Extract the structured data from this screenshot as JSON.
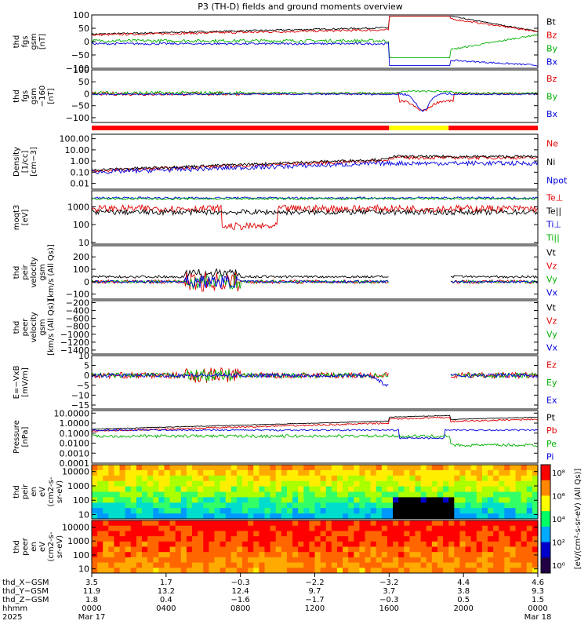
{
  "chart_data": {
    "type": "line",
    "title": "P3 (TH-D) fields and ground moments overview",
    "x_range_hours": [
      0,
      24
    ],
    "panels": [
      {
        "ylabel": [
          "thd",
          "fgs",
          "gsm",
          "[nT]"
        ],
        "yticks": [
          "100",
          "50",
          "0",
          "−50",
          "−100"
        ],
        "ylim": [
          -100,
          100
        ],
        "scale": "linear",
        "legend": [
          {
            "name": "Bt",
            "color": "#000000"
          },
          {
            "name": "Bz",
            "color": "#e00000"
          },
          {
            "name": "By",
            "color": "#00b000"
          },
          {
            "name": "Bx",
            "color": "#0000dd"
          }
        ]
      },
      {
        "ylabel": [
          "thd",
          "fgs",
          "gsm",
          "−160",
          "[nT]"
        ],
        "yticks": [
          "100",
          "50",
          "0",
          "−50",
          "−100"
        ],
        "ylim": [
          -120,
          100
        ],
        "scale": "linear",
        "legend": [
          {
            "name": "Bz",
            "color": "#e00000"
          },
          {
            "name": "By",
            "color": "#00b000"
          },
          {
            "name": "Bx",
            "color": "#0000dd"
          }
        ]
      },
      {
        "ylabel": [
          "Density",
          "[1/cc]",
          "[cm−3]"
        ],
        "yticks": [
          "100.00",
          "10.00",
          "1.00",
          "0.10",
          "0.01"
        ],
        "ylim": [
          0.003,
          250
        ],
        "scale": "log",
        "legend": [
          {
            "name": "Ne",
            "color": "#e00000"
          },
          {
            "name": "Ni",
            "color": "#000000"
          },
          {
            "name": "Npot",
            "color": "#0000dd"
          }
        ]
      },
      {
        "ylabel": [
          "moqt3",
          "[eV]"
        ],
        "yticks": [
          "1000",
          "100",
          "10"
        ],
        "ylim": [
          8,
          8000
        ],
        "scale": "log",
        "legend": [
          {
            "name": "Te⊥",
            "color": "#e00000"
          },
          {
            "name": "Te||",
            "color": "#000000"
          },
          {
            "name": "Ti⊥",
            "color": "#0000dd"
          },
          {
            "name": "Ti||",
            "color": "#00b000"
          }
        ]
      },
      {
        "ylabel": [
          "thd",
          "peir",
          "velocity",
          "gsm",
          "[km/s (All Qs)]"
        ],
        "yticks": [
          "200",
          "100",
          "0",
          "−100"
        ],
        "ylim": [
          -140,
          290
        ],
        "scale": "linear",
        "legend": [
          {
            "name": "Vt",
            "color": "#000000"
          },
          {
            "name": "Vz",
            "color": "#e00000"
          },
          {
            "name": "Vy",
            "color": "#00b000"
          },
          {
            "name": "Vx",
            "color": "#0000dd"
          }
        ]
      },
      {
        "ylabel": [
          "thd",
          "peer",
          "velocity",
          "gsm",
          "[km/s (All Qs)]"
        ],
        "yticks": [
          "−200",
          "−400",
          "−600",
          "−800",
          "−1000",
          "−1200",
          "−1400"
        ],
        "ylim": [
          -1500,
          -150
        ],
        "scale": "linear",
        "legend": [
          {
            "name": "Vt",
            "color": "#000000"
          },
          {
            "name": "Vz",
            "color": "#e00000"
          },
          {
            "name": "Vy",
            "color": "#00b000"
          },
          {
            "name": "Vx",
            "color": "#0000dd"
          }
        ]
      },
      {
        "ylabel": [
          "E=−VxB",
          "[mV/m]"
        ],
        "yticks": [
          "10",
          "5",
          "0",
          "−5",
          "−10",
          "−15"
        ],
        "ylim": [
          -17,
          10
        ],
        "scale": "linear",
        "legend": [
          {
            "name": "Ez",
            "color": "#e00000"
          },
          {
            "name": "Ey",
            "color": "#00b000"
          },
          {
            "name": "Ex",
            "color": "#0000dd"
          }
        ]
      },
      {
        "ylabel": [
          "Pressure",
          "[nPa]"
        ],
        "yticks": [
          "10.0000",
          "1.0000",
          "0.1000",
          "0.0100",
          "0.0010",
          "0.0001"
        ],
        "ylim": [
          0.0001,
          18
        ],
        "scale": "log",
        "legend": [
          {
            "name": "Pt",
            "color": "#000000"
          },
          {
            "name": "Pb",
            "color": "#e00000"
          },
          {
            "name": "Pe",
            "color": "#00b000"
          },
          {
            "name": "Pi",
            "color": "#0000dd"
          }
        ]
      },
      {
        "ylabel": [
          "thd",
          "peir",
          "en",
          "eV",
          "(cm2-s-",
          "sr-eV)"
        ],
        "yticks": [
          "10000",
          "1000",
          "100",
          "10"
        ],
        "ylim": [
          5,
          30000
        ],
        "scale": "log",
        "spectrogram": true
      },
      {
        "ylabel": [
          "thd",
          "peer",
          "en",
          "eV",
          "(cm2-s-",
          "sr-eV)"
        ],
        "yticks": [
          "10000",
          "1000",
          "100",
          "10"
        ],
        "ylim": [
          5,
          30000
        ],
        "scale": "log",
        "spectrogram": true
      }
    ],
    "colorbar": {
      "ticks": [
        "10⁸",
        "10⁶",
        "10⁴",
        "10²",
        "10⁰"
      ],
      "label": "[eV/(cm²-s-sr-eV) (All Qs)]"
    },
    "mode_bar": [
      {
        "from": 0,
        "to": 16.0,
        "mode": "slow survey",
        "color": "#ff0000"
      },
      {
        "from": 16.0,
        "to": 19.2,
        "mode": "fast survey",
        "color": "#ffff00"
      },
      {
        "from": 19.2,
        "to": 24,
        "mode": "slow survey",
        "color": "#ff0000"
      }
    ],
    "ephemeris": {
      "labels": [
        "thd_X−GSM",
        "thd_Y−GSM",
        "thd_Z−GSM",
        "hhmm",
        "2025"
      ],
      "columns": [
        {
          "x": "3.5",
          "y": "11.9",
          "z": "1.8",
          "time": "0000",
          "date": "Mar 17"
        },
        {
          "x": "1.7",
          "y": "13.2",
          "z": "0.4",
          "time": "0400",
          "date": ""
        },
        {
          "x": "−0.3",
          "y": "12.4",
          "z": "−1.6",
          "time": "0800",
          "date": ""
        },
        {
          "x": "−2.2",
          "y": "9.7",
          "z": "−1.7",
          "time": "1200",
          "date": ""
        },
        {
          "x": "−3.2",
          "y": "3.7",
          "z": "−0.3",
          "time": "1600",
          "date": ""
        },
        {
          "x": "4.4",
          "y": "3.8",
          "z": "0.5",
          "time": "2000",
          "date": ""
        },
        {
          "x": "4.6",
          "y": "9.3",
          "z": "1.5",
          "time": "0000",
          "date": "Mar 18"
        }
      ]
    }
  }
}
